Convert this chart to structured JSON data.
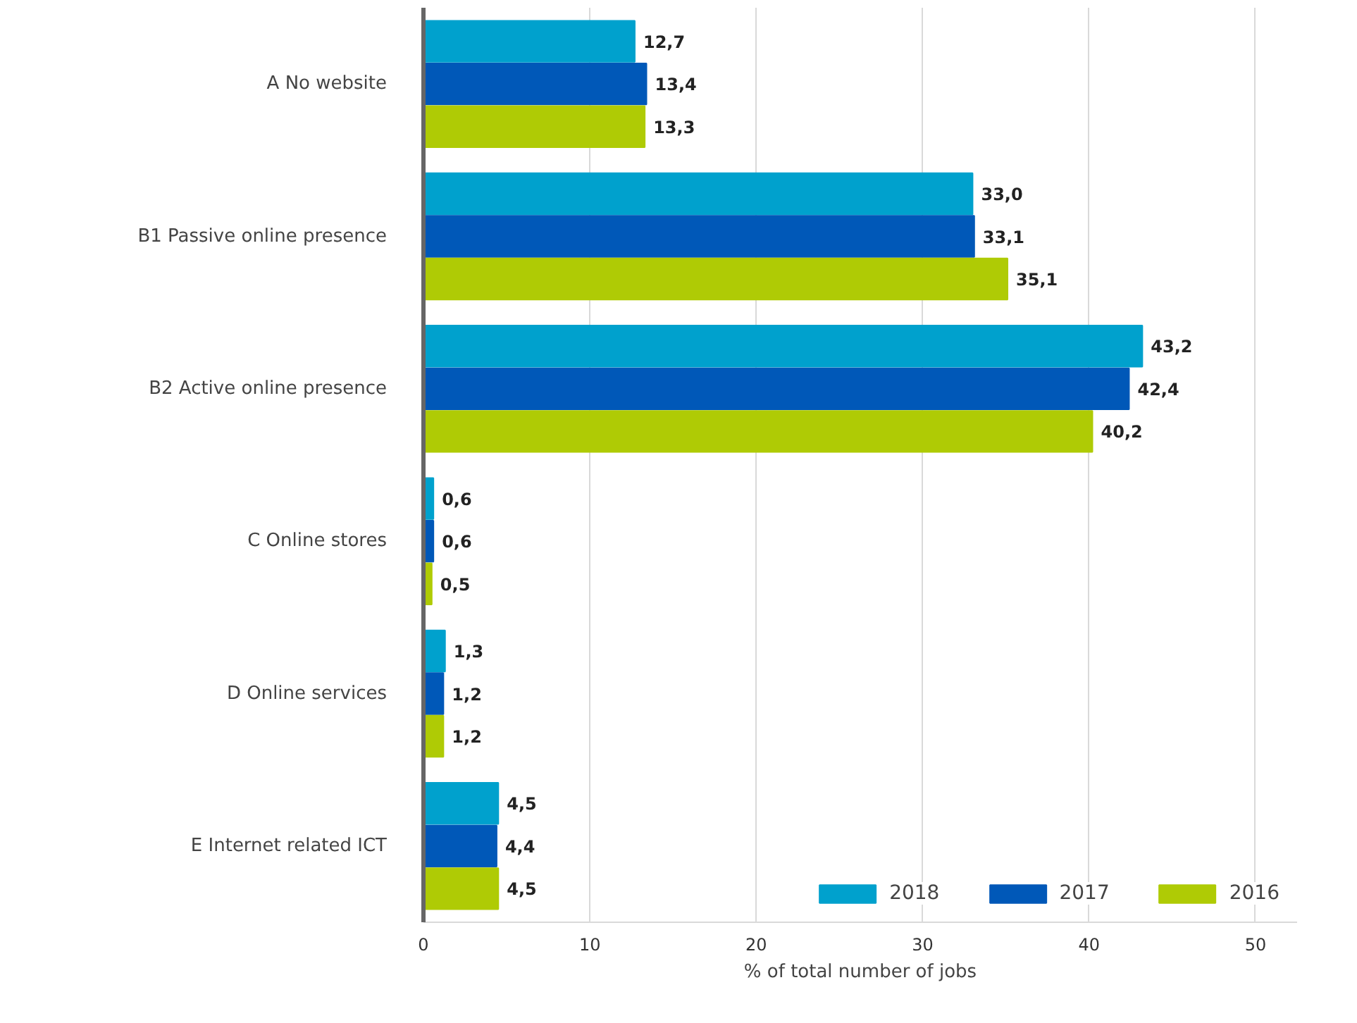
{
  "chart_data": {
    "type": "bar",
    "orientation": "horizontal",
    "xlabel": "% of total number of jobs",
    "categories": [
      "A No website",
      "B1 Passive online presence",
      "B2 Active online presence",
      "C Online stores",
      "D Online services",
      "E Internet related ICT"
    ],
    "series": [
      {
        "name": "2018",
        "color": "#00a1cd",
        "values": [
          12.7,
          33.0,
          43.2,
          0.6,
          1.3,
          4.5
        ],
        "value_labels": [
          "12,7",
          "33,0",
          "43,2",
          "0,6",
          "1,3",
          "4,5"
        ]
      },
      {
        "name": "2017",
        "color": "#0058b8",
        "values": [
          13.4,
          33.1,
          42.4,
          0.6,
          1.2,
          4.4
        ],
        "value_labels": [
          "13,4",
          "33,1",
          "42,4",
          "0,6",
          "1,2",
          "4,4"
        ]
      },
      {
        "name": "2016",
        "color": "#afcb05",
        "values": [
          13.3,
          35.1,
          40.2,
          0.5,
          1.2,
          4.5
        ],
        "value_labels": [
          "13,3",
          "35,1",
          "40,2",
          "0,5",
          "1,2",
          "4,5"
        ]
      }
    ],
    "xlim": [
      0,
      52.5
    ],
    "xticks": [
      0,
      10,
      20,
      30,
      40,
      50
    ],
    "grid": "x",
    "legend": "bottom right"
  }
}
